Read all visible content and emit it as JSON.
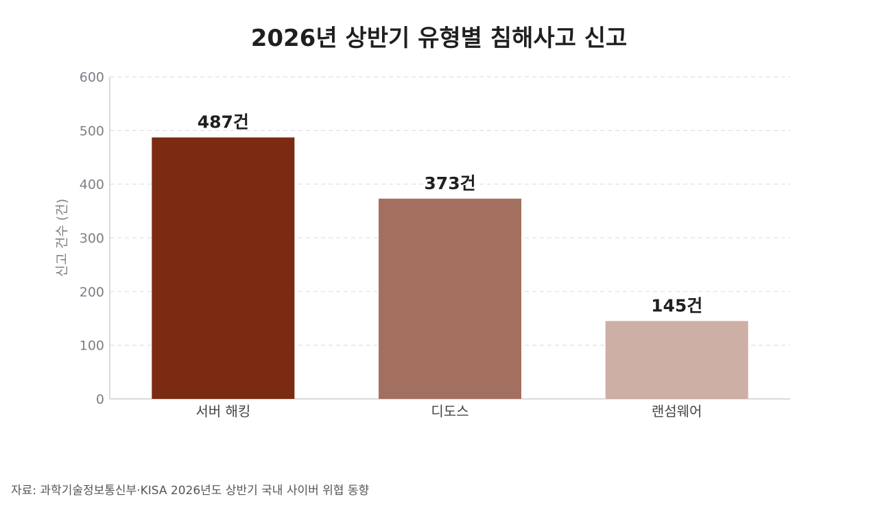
{
  "title": "2026년 상반기 유형별 침해사고 신고",
  "source": "자료: 과학기술정보통신부·KISA 2026년도 상반기 국내 사이버 위협 동향",
  "chart_data": {
    "type": "bar",
    "title": "2026년 상반기 유형별 침해사고 신고",
    "categories": [
      "서버 해킹",
      "디도스",
      "랜섬웨어"
    ],
    "values": [
      487,
      373,
      145
    ],
    "value_labels": [
      "487건",
      "373건",
      "145건"
    ],
    "colors": [
      "#7a2b12",
      "#a36f5f",
      "#cdafa5"
    ],
    "xlabel": "",
    "ylabel": "신고 건수 (건)",
    "ylim": [
      0,
      600
    ],
    "yticks": [
      0,
      100,
      200,
      300,
      400,
      500,
      600
    ],
    "grid": true,
    "legend": "none"
  }
}
